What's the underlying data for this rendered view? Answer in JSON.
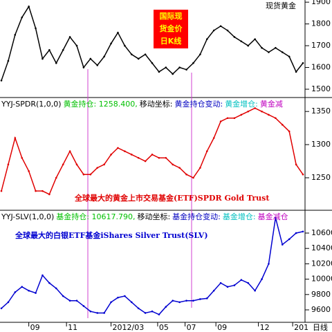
{
  "chart_data": [
    {
      "type": "line",
      "label": "现货黄金",
      "color": "#000000",
      "annotation": {
        "lines": [
          "国际现",
          "货金价",
          "日K线"
        ],
        "color": "#ffff00",
        "background": "#ff0000"
      },
      "x": [
        0,
        10,
        20,
        30,
        40,
        50,
        60,
        70,
        80,
        90,
        100,
        110,
        120,
        130,
        140,
        150,
        160,
        170,
        180,
        190,
        200,
        210,
        220,
        230,
        240,
        250,
        260,
        270,
        280,
        290,
        300,
        310,
        320,
        330,
        340,
        350,
        360,
        370,
        380,
        390,
        400,
        410,
        420,
        430,
        440
      ],
      "values": [
        1540,
        1630,
        1750,
        1830,
        1880,
        1780,
        1640,
        1680,
        1620,
        1680,
        1740,
        1700,
        1600,
        1640,
        1610,
        1650,
        1710,
        1760,
        1700,
        1660,
        1640,
        1660,
        1620,
        1580,
        1600,
        1570,
        1600,
        1590,
        1620,
        1660,
        1730,
        1770,
        1790,
        1770,
        1740,
        1720,
        1700,
        1730,
        1690,
        1670,
        1690,
        1670,
        1650,
        1580,
        1620
      ],
      "xlim": [
        0,
        440
      ],
      "ylim": [
        1465,
        1910
      ],
      "yticks": [
        1500,
        1600,
        1700,
        1800,
        1900
      ]
    },
    {
      "type": "line",
      "color": "#e00000",
      "header": [
        {
          "text": "YYJ-SPDR(1,0,0)",
          "color": "#000000"
        },
        {
          "text": "黄金持仓: 1258.400,",
          "color": "#00c000"
        },
        {
          "text": "移动坐标:",
          "color": "#000000"
        },
        {
          "text": "黄金持仓变动:",
          "color": "#0000c0"
        },
        {
          "text": "黄金增仓:",
          "color": "#00c0c0"
        },
        {
          "text": "黄金减",
          "color": "#c000c0"
        }
      ],
      "annotation": {
        "lines": [
          "全球最大的黄金上市交易基金(ETF)SPDR Gold Trust"
        ],
        "color": "#e00000"
      },
      "x": [
        0,
        10,
        20,
        30,
        40,
        50,
        60,
        70,
        80,
        90,
        100,
        110,
        120,
        130,
        140,
        150,
        160,
        170,
        180,
        190,
        200,
        210,
        220,
        230,
        240,
        250,
        260,
        270,
        280,
        290,
        300,
        310,
        320,
        330,
        340,
        350,
        360,
        370,
        380,
        390,
        400,
        410,
        420,
        430,
        440
      ],
      "values": [
        1230,
        1270,
        1310,
        1280,
        1260,
        1230,
        1230,
        1225,
        1250,
        1270,
        1290,
        1270,
        1255,
        1255,
        1265,
        1270,
        1285,
        1295,
        1290,
        1285,
        1280,
        1275,
        1285,
        1280,
        1280,
        1270,
        1265,
        1255,
        1250,
        1265,
        1290,
        1310,
        1335,
        1340,
        1340,
        1345,
        1350,
        1355,
        1350,
        1345,
        1340,
        1330,
        1320,
        1270,
        1255
      ],
      "xlim": [
        0,
        440
      ],
      "ylim": [
        1202,
        1370
      ],
      "yticks": [
        1250,
        1300,
        1350
      ]
    },
    {
      "type": "line",
      "color": "#0000d0",
      "header": [
        {
          "text": "YYJ-SLV(1,0,0)",
          "color": "#000000"
        },
        {
          "text": "基金持仓: 10617.790,",
          "color": "#00c000"
        },
        {
          "text": "移动坐标:",
          "color": "#000000"
        },
        {
          "text": "基金持仓变动:",
          "color": "#0000c0"
        },
        {
          "text": "基金增仓:",
          "color": "#00c0c0"
        },
        {
          "text": "基金减仓",
          "color": "#c000c0"
        }
      ],
      "annotation": {
        "lines": [
          "全球最大的白银ETF基金iShares Silver Trust(SLV)"
        ],
        "color": "#0000d0"
      },
      "x": [
        0,
        10,
        20,
        30,
        40,
        50,
        60,
        70,
        80,
        90,
        100,
        110,
        120,
        130,
        140,
        150,
        160,
        170,
        180,
        190,
        200,
        210,
        220,
        230,
        240,
        250,
        260,
        270,
        280,
        290,
        300,
        310,
        320,
        330,
        340,
        350,
        360,
        370,
        380,
        390,
        400,
        410,
        420,
        430,
        440
      ],
      "values": [
        9620,
        9700,
        9830,
        9900,
        9850,
        9820,
        10050,
        9950,
        9880,
        9780,
        9720,
        9720,
        9650,
        9580,
        9560,
        9560,
        9700,
        9760,
        9780,
        9700,
        9620,
        9560,
        9580,
        9540,
        9640,
        9720,
        9700,
        9720,
        9720,
        9740,
        9750,
        9850,
        9950,
        9900,
        9920,
        9990,
        9950,
        9850,
        10000,
        10200,
        10800,
        10450,
        10520,
        10600,
        10620
      ],
      "xlim": [
        0,
        440
      ],
      "ylim": [
        9447,
        10888
      ],
      "yticks": [
        9600,
        9800,
        10000,
        10200,
        10400,
        10600
      ],
      "xlabel": "日线",
      "xticks": [
        {
          "value": 40,
          "label": "09"
        },
        {
          "value": 95,
          "label": "11"
        },
        {
          "value": 160,
          "label": "2012/03"
        },
        {
          "value": 228,
          "label": "05"
        },
        {
          "value": 268,
          "label": "07"
        },
        {
          "value": 313,
          "label": "09"
        },
        {
          "value": 375,
          "label": "12"
        },
        {
          "value": 425,
          "label": "201"
        }
      ]
    }
  ]
}
